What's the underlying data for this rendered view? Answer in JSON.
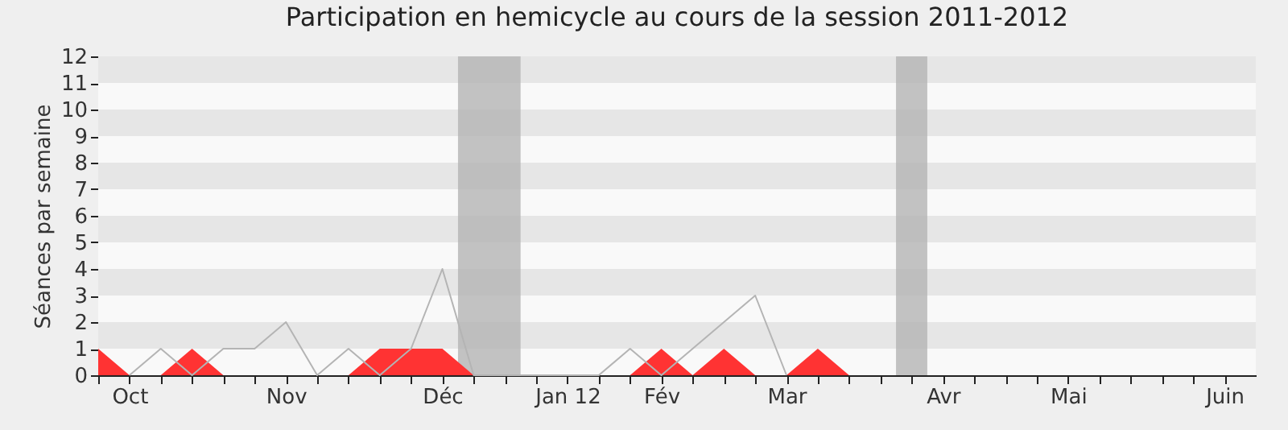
{
  "chart_data": {
    "type": "line",
    "title": "Participation en hemicycle au cours de la session 2011-2012",
    "ylabel": "Séances par semaine",
    "categories": [
      null,
      "Oct",
      null,
      null,
      null,
      null,
      "Nov",
      null,
      null,
      null,
      null,
      "Déc",
      null,
      null,
      null,
      "Jan 12",
      null,
      null,
      "Fév",
      null,
      null,
      null,
      "Mar",
      null,
      null,
      null,
      null,
      "Avr",
      null,
      null,
      null,
      "Mai",
      null,
      null,
      null,
      null,
      "Juin"
    ],
    "series": [
      {
        "type": "area",
        "color": "#ff3333",
        "values": [
          1,
          0,
          0,
          1,
          0,
          0,
          0,
          0,
          0,
          1,
          1,
          1,
          0,
          0,
          0,
          0,
          0,
          0,
          1,
          0,
          1,
          0,
          0,
          1,
          0,
          null,
          null,
          null,
          null,
          null,
          null,
          null,
          null,
          null,
          null,
          null,
          null
        ]
      },
      {
        "type": "line",
        "color": "#b4b4b4",
        "values": [
          null,
          0,
          1,
          0,
          1,
          1,
          2,
          0,
          1,
          0,
          1,
          4,
          0,
          0,
          0,
          0,
          0,
          1,
          0,
          1,
          2,
          3,
          0,
          null,
          null,
          null,
          null,
          null,
          null,
          null,
          null,
          null,
          null,
          null,
          null,
          null,
          null
        ]
      }
    ],
    "ylim": [
      0,
      12
    ],
    "yticks": [
      0,
      1,
      2,
      3,
      4,
      5,
      6,
      7,
      8,
      9,
      10,
      11,
      12
    ],
    "marker": "none",
    "line_style": "solid"
  }
}
